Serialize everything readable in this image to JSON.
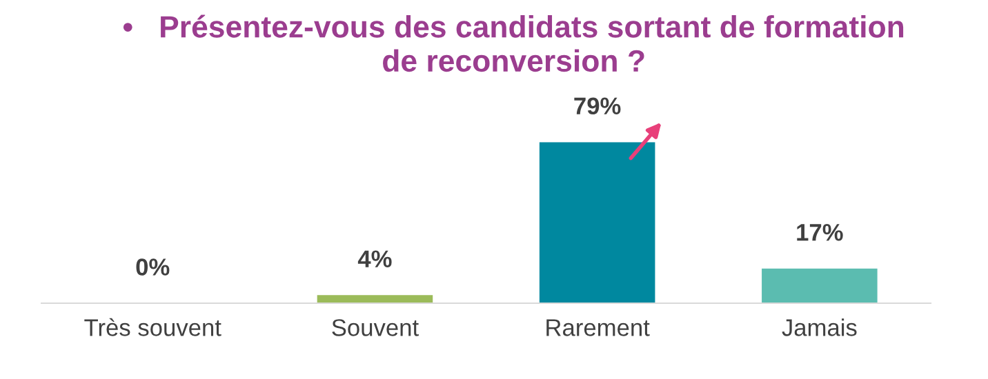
{
  "chart_data": {
    "type": "bar",
    "title": "•   Présentez-vous des candidats sortant de formation\nde reconversion ?",
    "categories": [
      "Très souvent",
      "Souvent",
      "Rarement",
      "Jamais"
    ],
    "values": [
      0,
      4,
      79,
      17
    ],
    "colors": [
      "#9bbb59",
      "#9bbb59",
      "#00889f",
      "#5bbcb0"
    ],
    "value_labels": [
      "0%",
      "4%",
      "79%",
      "17%"
    ],
    "grid": false,
    "legend": false
  }
}
